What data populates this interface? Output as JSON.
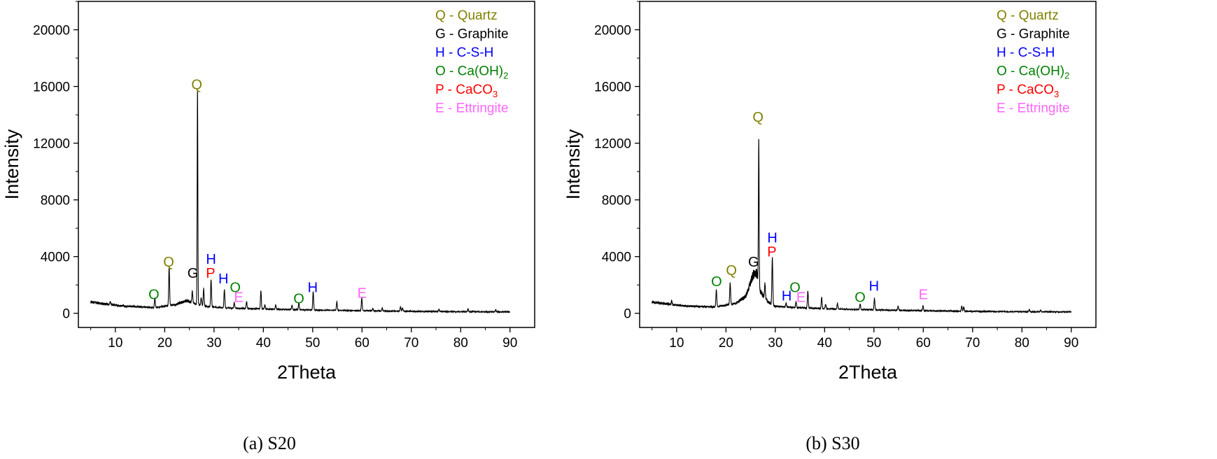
{
  "figure": {
    "panels": [
      {
        "caption": "(a) S20",
        "legend": [
          {
            "symbol": "Q",
            "name": "Quartz",
            "color": "#808000"
          },
          {
            "symbol": "G",
            "name": "Graphite",
            "color": "#000000"
          },
          {
            "symbol": "H",
            "name": "C-S-H",
            "color": "#0000ff"
          },
          {
            "symbol": "O",
            "name": "Ca(OH)",
            "sub": "2",
            "color": "#008000"
          },
          {
            "symbol": "P",
            "name": "CaCO",
            "sub": "3",
            "color": "#ff0000"
          },
          {
            "symbol": "E",
            "name": "Ettringite",
            "color": "#ff66ff"
          }
        ]
      },
      {
        "caption": "(b) S30",
        "legend": [
          {
            "symbol": "Q",
            "name": "Quartz",
            "color": "#808000"
          },
          {
            "symbol": "G",
            "name": "Graphite",
            "color": "#000000"
          },
          {
            "symbol": "H",
            "name": "C-S-H",
            "color": "#0000ff"
          },
          {
            "symbol": "O",
            "name": "Ca(OH)",
            "sub": "2",
            "color": "#008000"
          },
          {
            "symbol": "P",
            "name": "CaCO",
            "sub": "3",
            "color": "#ff0000"
          },
          {
            "symbol": "E",
            "name": "Ettringite",
            "color": "#ff66ff"
          }
        ]
      }
    ]
  },
  "chart_data": [
    {
      "type": "line",
      "title": "",
      "xlabel": "2Theta",
      "ylabel": "Intensity",
      "xlim": [
        2.5,
        95
      ],
      "ylim": [
        -1000,
        22000
      ],
      "xticks": [
        10,
        20,
        30,
        40,
        50,
        60,
        70,
        80,
        90
      ],
      "yticks": [
        0,
        4000,
        8000,
        12000,
        16000,
        20000
      ],
      "series": [
        {
          "name": "S20",
          "color": "#000000",
          "baseline": [
            [
              5,
              800
            ],
            [
              8,
              650
            ],
            [
              12,
              500
            ],
            [
              18,
              400
            ],
            [
              22,
              600
            ],
            [
              24.5,
              900
            ],
            [
              26,
              700
            ],
            [
              28,
              500
            ],
            [
              32,
              380
            ],
            [
              40,
              300
            ],
            [
              50,
              230
            ],
            [
              60,
              180
            ],
            [
              70,
              140
            ],
            [
              80,
              110
            ],
            [
              90,
              100
            ]
          ],
          "peaks": [
            [
              9,
              200
            ],
            [
              18,
              650
            ],
            [
              20.9,
              2700
            ],
            [
              25.6,
              800
            ],
            [
              26.65,
              15200
            ],
            [
              27.4,
              500
            ],
            [
              27.9,
              1200
            ],
            [
              29.4,
              1900
            ],
            [
              32.1,
              1300
            ],
            [
              34.1,
              380
            ],
            [
              36.6,
              500
            ],
            [
              39.5,
              1300
            ],
            [
              40.3,
              300
            ],
            [
              42.5,
              300
            ],
            [
              45.8,
              300
            ],
            [
              47.2,
              500
            ],
            [
              50.1,
              1300
            ],
            [
              54.9,
              600
            ],
            [
              59.95,
              900
            ],
            [
              62.2,
              150
            ],
            [
              64.1,
              200
            ],
            [
              67.8,
              300
            ],
            [
              68.2,
              250
            ],
            [
              75.6,
              150
            ],
            [
              81.5,
              200
            ],
            [
              87.1,
              150
            ]
          ]
        }
      ],
      "annotations": [
        {
          "text": "O",
          "x": 17.8,
          "y": 1000,
          "color": "#008000"
        },
        {
          "text": "Q",
          "x": 20.8,
          "y": 3300,
          "color": "#808000"
        },
        {
          "text": "G",
          "x": 25.7,
          "y": 2500,
          "color": "#000000"
        },
        {
          "text": "Q",
          "x": 26.5,
          "y": 15800,
          "color": "#808000"
        },
        {
          "text": "H",
          "x": 29.4,
          "y": 3500,
          "color": "#0000ff"
        },
        {
          "text": "P",
          "x": 29.3,
          "y": 2500,
          "color": "#ff0000"
        },
        {
          "text": "H",
          "x": 31.9,
          "y": 2100,
          "color": "#0000ff"
        },
        {
          "text": "O",
          "x": 34.3,
          "y": 1500,
          "color": "#008000"
        },
        {
          "text": "E",
          "x": 35.0,
          "y": 800,
          "color": "#ff66ff"
        },
        {
          "text": "O",
          "x": 47.2,
          "y": 700,
          "color": "#008000"
        },
        {
          "text": "H",
          "x": 50.0,
          "y": 1500,
          "color": "#0000ff"
        },
        {
          "text": "E",
          "x": 60.0,
          "y": 1100,
          "color": "#ff66ff"
        }
      ]
    },
    {
      "type": "line",
      "title": "",
      "xlabel": "2Theta",
      "ylabel": "Intensity",
      "xlim": [
        2.5,
        95
      ],
      "ylim": [
        -1000,
        22000
      ],
      "xticks": [
        10,
        20,
        30,
        40,
        50,
        60,
        70,
        80,
        90
      ],
      "yticks": [
        0,
        4000,
        8000,
        12000,
        16000,
        20000
      ],
      "series": [
        {
          "name": "S30",
          "color": "#000000",
          "baseline": [
            [
              5,
              800
            ],
            [
              8,
              650
            ],
            [
              12,
              500
            ],
            [
              18,
              450
            ],
            [
              22,
              700
            ],
            [
              24,
              1200
            ],
            [
              25.5,
              2700
            ],
            [
              26.2,
              2900
            ],
            [
              27,
              1500
            ],
            [
              28.5,
              800
            ],
            [
              30,
              500
            ],
            [
              33,
              420
            ],
            [
              40,
              320
            ],
            [
              50,
              240
            ],
            [
              60,
              180
            ],
            [
              70,
              140
            ],
            [
              80,
              110
            ],
            [
              90,
              100
            ]
          ],
          "peaks": [
            [
              9,
              300
            ],
            [
              18.05,
              1200
            ],
            [
              20.85,
              1500
            ],
            [
              26.65,
              10300
            ],
            [
              27.9,
              1000
            ],
            [
              29.4,
              3300
            ],
            [
              32.2,
              300
            ],
            [
              34.2,
              400
            ],
            [
              36.6,
              1200
            ],
            [
              39.4,
              800
            ],
            [
              40.2,
              300
            ],
            [
              42.6,
              400
            ],
            [
              47.2,
              400
            ],
            [
              50.1,
              800
            ],
            [
              54.9,
              300
            ],
            [
              59.95,
              350
            ],
            [
              67.8,
              350
            ],
            [
              68.2,
              300
            ],
            [
              81.5,
              150
            ],
            [
              83.8,
              120
            ]
          ]
        }
      ],
      "annotations": [
        {
          "text": "O",
          "x": 18.1,
          "y": 1900,
          "color": "#008000"
        },
        {
          "text": "Q",
          "x": 21.1,
          "y": 2700,
          "color": "#808000"
        },
        {
          "text": "G",
          "x": 25.6,
          "y": 3300,
          "color": "#000000"
        },
        {
          "text": "Q",
          "x": 26.5,
          "y": 13500,
          "color": "#808000"
        },
        {
          "text": "H",
          "x": 29.4,
          "y": 5000,
          "color": "#0000ff"
        },
        {
          "text": "P",
          "x": 29.3,
          "y": 4000,
          "color": "#ff0000"
        },
        {
          "text": "H",
          "x": 32.3,
          "y": 900,
          "color": "#0000ff"
        },
        {
          "text": "O",
          "x": 34.0,
          "y": 1500,
          "color": "#008000"
        },
        {
          "text": "E",
          "x": 35.2,
          "y": 800,
          "color": "#ff66ff"
        },
        {
          "text": "O",
          "x": 47.2,
          "y": 800,
          "color": "#008000"
        },
        {
          "text": "H",
          "x": 50.0,
          "y": 1600,
          "color": "#0000ff"
        },
        {
          "text": "E",
          "x": 60.0,
          "y": 1000,
          "color": "#ff66ff"
        }
      ]
    }
  ]
}
